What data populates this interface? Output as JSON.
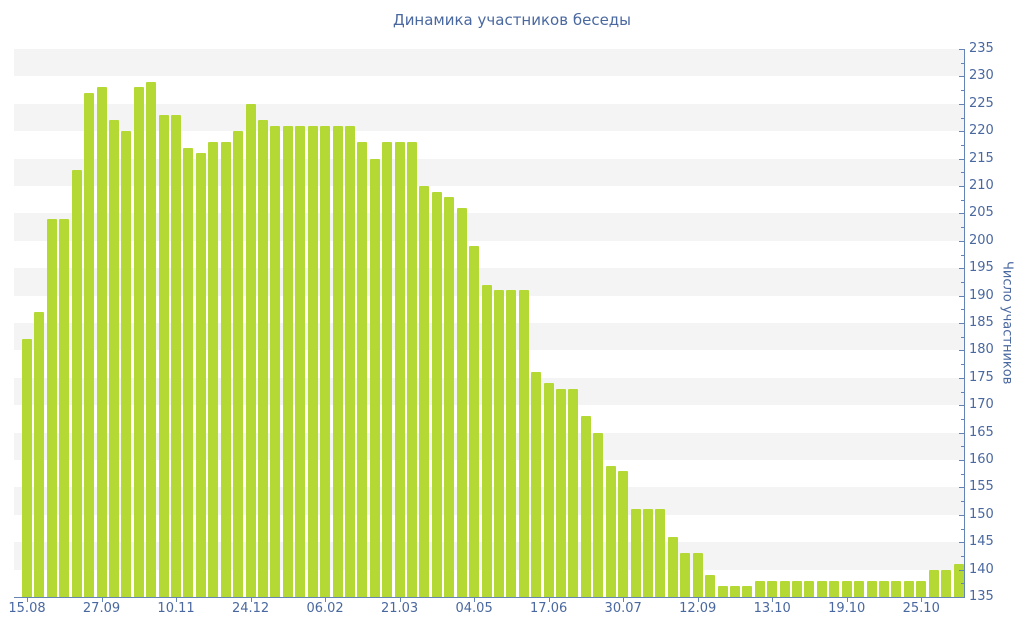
{
  "chart_data": {
    "type": "bar",
    "title": "Динамика участников беседы",
    "ylabel": "Число участников",
    "ylim": [
      135,
      235
    ],
    "ytick_step": 5,
    "yticks": [
      135,
      140,
      145,
      150,
      155,
      160,
      165,
      170,
      175,
      180,
      185,
      190,
      195,
      200,
      205,
      210,
      215,
      220,
      225,
      230,
      235
    ],
    "grid": "horizontal-stripes",
    "legend": "none",
    "x_labels": [
      "15.08",
      "27.09",
      "10.11",
      "24.12",
      "06.02",
      "21.03",
      "04.05",
      "17.06",
      "30.07",
      "12.09",
      "13.10",
      "19.10",
      "25.10"
    ],
    "label_every": 6,
    "values": [
      182,
      187,
      204,
      204,
      213,
      227,
      228,
      222,
      220,
      228,
      229,
      223,
      223,
      217,
      216,
      218,
      218,
      220,
      225,
      222,
      221,
      221,
      221,
      221,
      221,
      221,
      221,
      218,
      215,
      218,
      218,
      218,
      210,
      209,
      208,
      206,
      199,
      192,
      191,
      191,
      191,
      176,
      174,
      173,
      173,
      168,
      165,
      159,
      158,
      151,
      151,
      151,
      146,
      143,
      143,
      139,
      137,
      137,
      137,
      138,
      138,
      138,
      138,
      138,
      138,
      138,
      138,
      138,
      138,
      138,
      138,
      138,
      138,
      140,
      140,
      141
    ]
  },
  "colors": {
    "background": "#ffffff",
    "bar": "#b4d834",
    "stripe": "#f4f4f4",
    "axis_line": "#6484b6",
    "axis_text": "#4a68a0",
    "title_text": "#4a68a0"
  }
}
